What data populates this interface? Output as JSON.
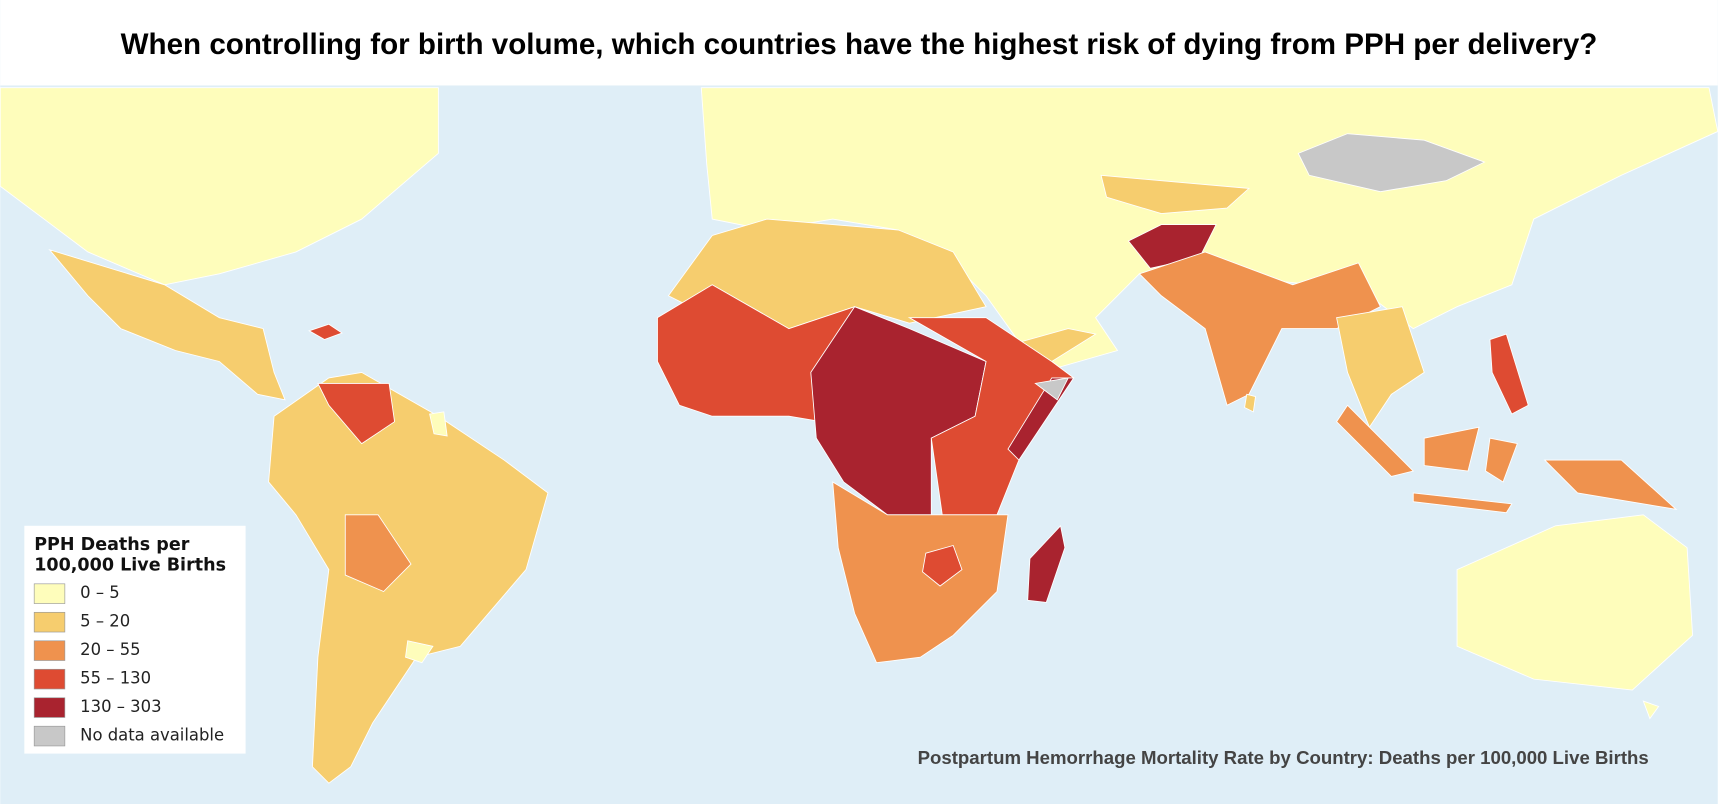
{
  "title": "When controlling for birth volume, which countries have the highest risk of dying from PPH per delivery?",
  "legend": {
    "title": "PPH Deaths per 100,000 Live Births",
    "items": [
      {
        "label": "0 – 5",
        "color": "#fefdbb"
      },
      {
        "label": "5 – 20",
        "color": "#f6cd6e"
      },
      {
        "label": "20 – 55",
        "color": "#ef924e"
      },
      {
        "label": "55 – 130",
        "color": "#de4b32"
      },
      {
        "label": "130 – 303",
        "color": "#a9232f"
      },
      {
        "label": "No data available",
        "color": "#c8c8c8"
      }
    ]
  },
  "caption": "Postpartum Hemorrhage Mortality Rate by Country: Deaths per 100,000 Live Births"
}
